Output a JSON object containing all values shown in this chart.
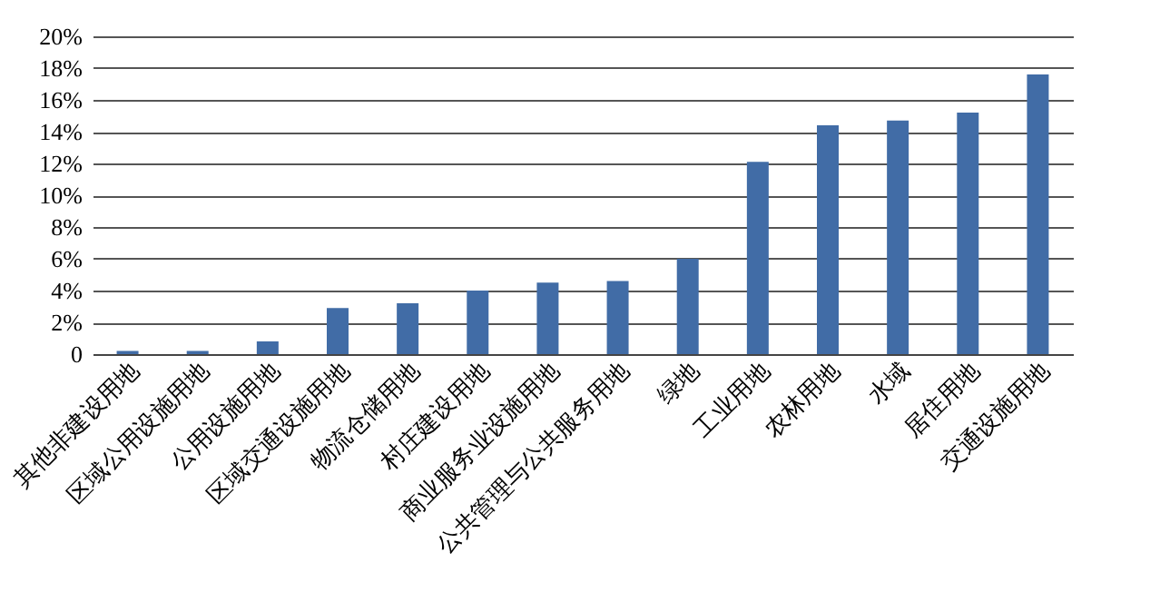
{
  "chart_data": {
    "type": "bar",
    "categories": [
      "其他非建设用地",
      "区域公用设施用地",
      "公用设施用地",
      "区域交通设施用地",
      "物流仓储用地",
      "村庄建设用地",
      "商业服务业设施用地",
      "公共管理与公共服务用地",
      "绿地",
      "工业用地",
      "农林用地",
      "水域",
      "居住用地",
      "交通设施用地"
    ],
    "values": [
      0.2,
      0.2,
      0.8,
      2.9,
      3.2,
      4.0,
      4.5,
      4.6,
      6.0,
      12.1,
      14.4,
      14.7,
      15.2,
      17.6
    ],
    "color": "#416ca6",
    "ylim": [
      0,
      20
    ],
    "yticks": [
      0,
      {
        "value": 2,
        "label": "2%"
      },
      {
        "value": 4,
        "label": "4%"
      },
      {
        "value": 6,
        "label": "6%"
      },
      {
        "value": 8,
        "label": "8%"
      },
      {
        "value": 10,
        "label": "10%"
      },
      {
        "value": 12,
        "label": "12%"
      },
      {
        "value": 14,
        "label": "14%"
      },
      {
        "value": 16,
        "label": "16%"
      },
      {
        "value": 18,
        "label": "18%"
      },
      {
        "value": 20,
        "label": "20%"
      }
    ],
    "grid": "y"
  }
}
